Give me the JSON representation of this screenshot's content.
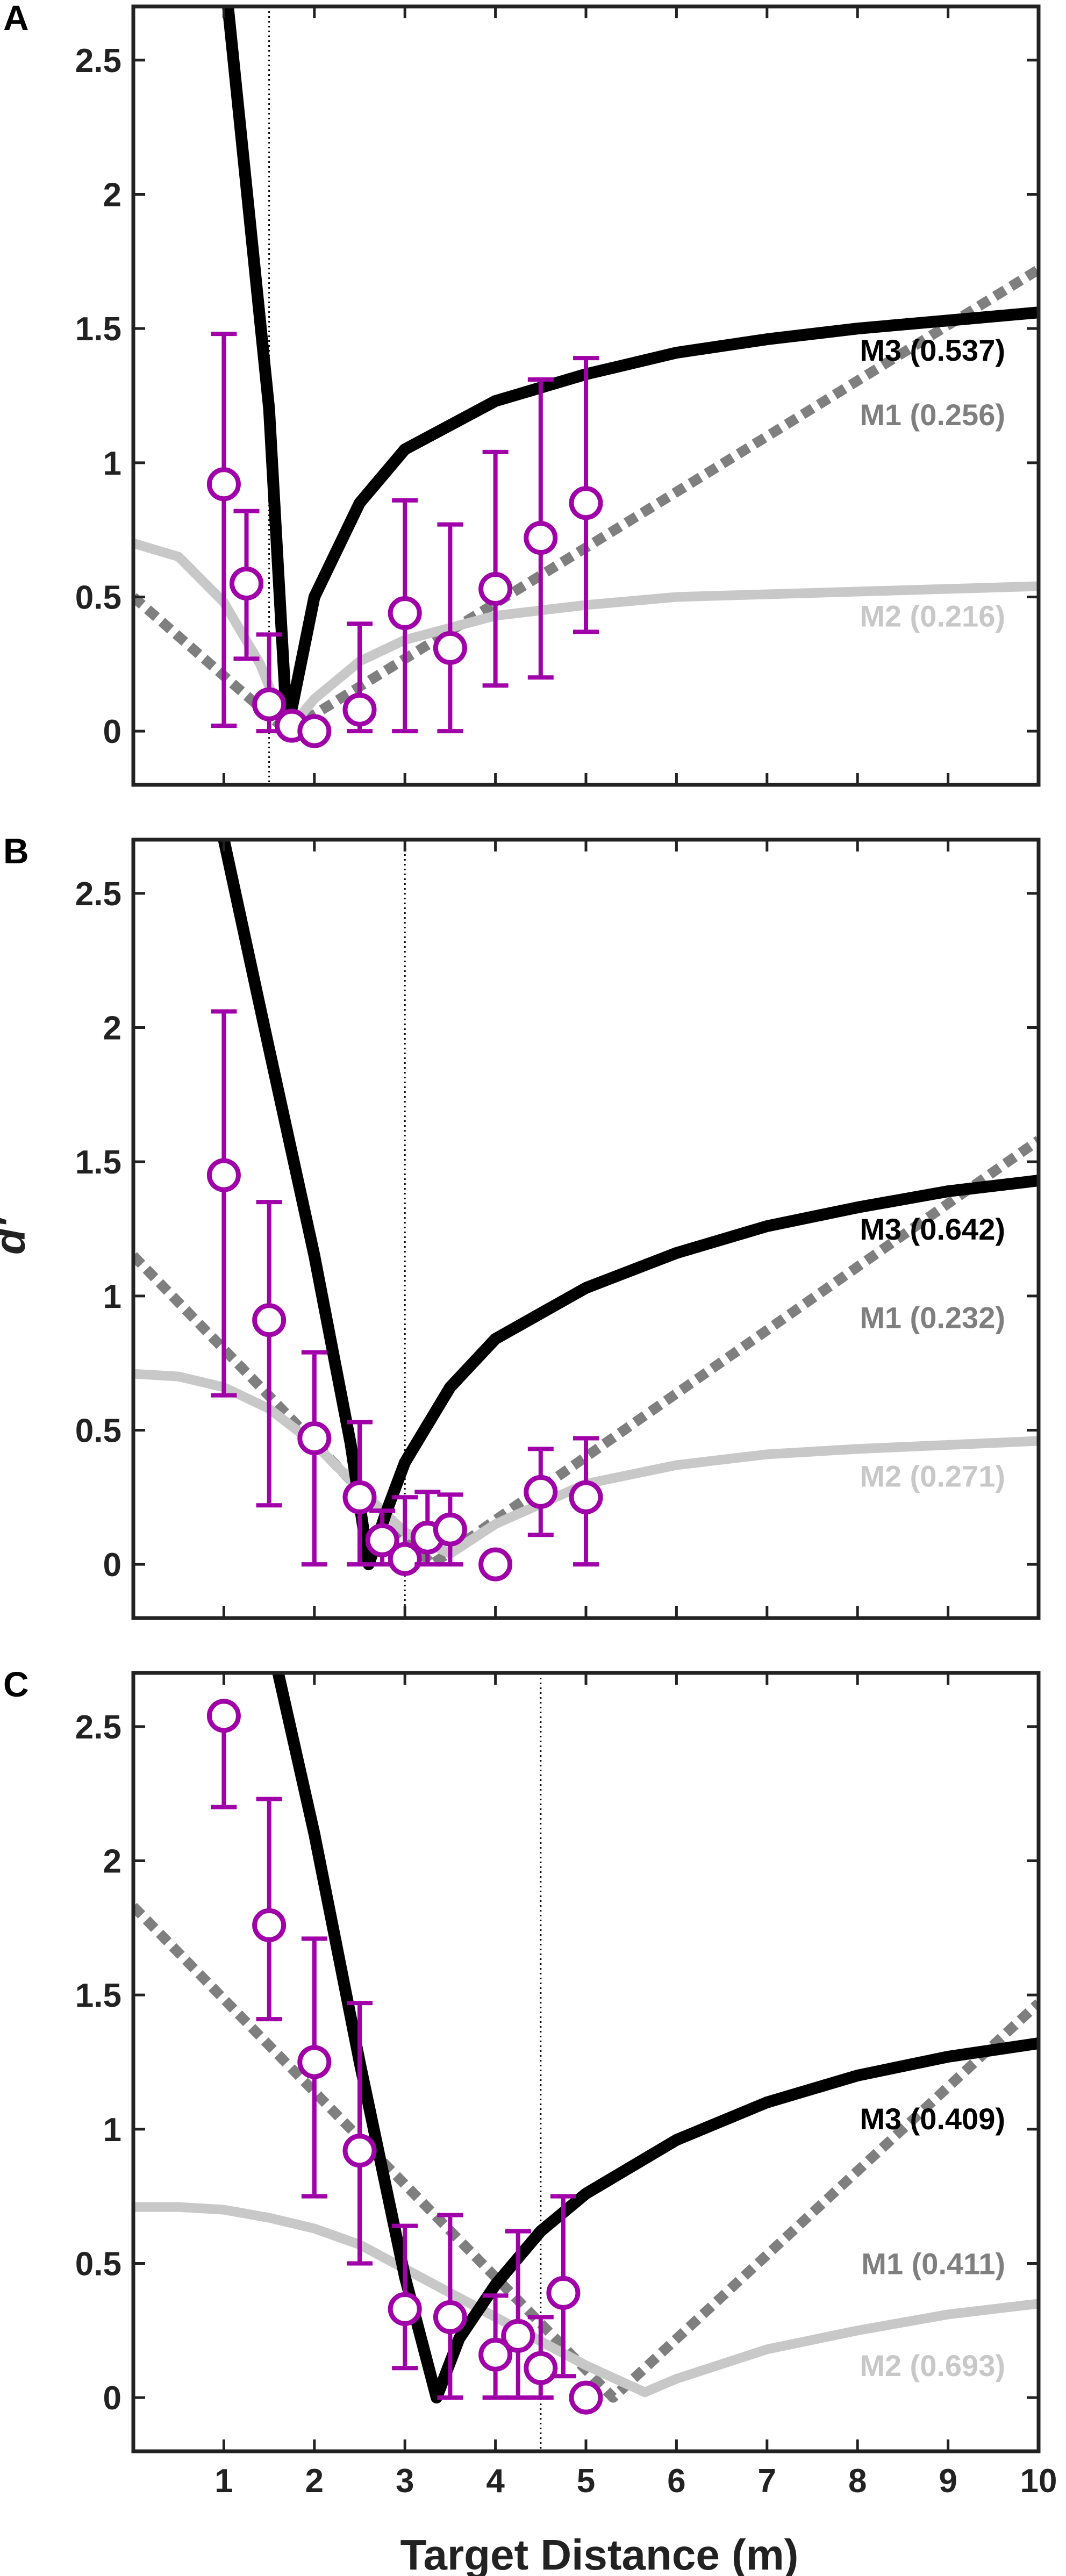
{
  "figure": {
    "xlabel": "Target Distance (m)",
    "ylabel": "d′"
  },
  "colors": {
    "M1": "#7f7f7f",
    "M2": "#c8c8c8",
    "M3": "#000000",
    "data": "#a000a8",
    "axis": "#222222"
  },
  "chart_data": [
    {
      "panel": "A",
      "type": "line",
      "xlim": [
        0,
        10
      ],
      "ylim": [
        -0.2,
        2.7
      ],
      "xticks": [
        1,
        2,
        3,
        4,
        5,
        6,
        7,
        8,
        9,
        10
      ],
      "yticks": [
        0,
        0.5,
        1,
        1.5,
        2,
        2.5
      ],
      "ytick_labels": [
        "0",
        "0.5",
        "1",
        "1.5",
        "2",
        "2.5"
      ],
      "reference_x": 1.5,
      "series": [
        {
          "name": "M3",
          "label": "M3 (0.537)",
          "style": "solid",
          "x": [
            1.0,
            1.5,
            1.7,
            2.0,
            2.5,
            3.0,
            4.0,
            5.0,
            6.0,
            7.0,
            8.0,
            9.0,
            10.0
          ],
          "y": [
            2.85,
            1.2,
            0.0,
            0.5,
            0.85,
            1.05,
            1.23,
            1.33,
            1.41,
            1.46,
            1.5,
            1.53,
            1.56
          ]
        },
        {
          "name": "M1",
          "label": "M1 (0.256)",
          "style": "dashed",
          "x": [
            0.0,
            1.7,
            10.0
          ],
          "y": [
            0.5,
            0.0,
            1.72
          ]
        },
        {
          "name": "M2",
          "label": "M2 (0.216)",
          "style": "solid",
          "x": [
            0.0,
            0.5,
            1.0,
            1.4,
            1.7,
            2.0,
            2.5,
            3.0,
            4.0,
            5.0,
            6.0,
            7.0,
            8.0,
            10.0
          ],
          "y": [
            0.7,
            0.65,
            0.48,
            0.25,
            0.0,
            0.12,
            0.26,
            0.34,
            0.43,
            0.47,
            0.5,
            0.51,
            0.52,
            0.54
          ]
        },
        {
          "name": "data",
          "style": "points",
          "x": [
            1.0,
            1.25,
            1.5,
            1.75,
            2.0,
            2.5,
            3.0,
            3.5,
            4.0,
            4.5,
            5.0
          ],
          "y": [
            0.92,
            0.55,
            0.1,
            0.02,
            0.0,
            0.08,
            0.44,
            0.31,
            0.53,
            0.72,
            0.85
          ],
          "err_low": [
            0.02,
            0.27,
            0.0,
            0.0,
            0.0,
            0.0,
            0.0,
            0.0,
            0.17,
            0.2,
            0.37
          ],
          "err_high": [
            1.48,
            0.82,
            0.36,
            0.0,
            0.0,
            0.4,
            0.86,
            0.77,
            1.04,
            1.31,
            1.39
          ]
        }
      ]
    },
    {
      "panel": "B",
      "type": "line",
      "xlim": [
        0,
        10
      ],
      "ylim": [
        -0.2,
        2.7
      ],
      "xticks": [
        1,
        2,
        3,
        4,
        5,
        6,
        7,
        8,
        9,
        10
      ],
      "yticks": [
        0,
        0.5,
        1,
        1.5,
        2,
        2.5
      ],
      "ytick_labels": [
        "0",
        "0.5",
        "1",
        "1.5",
        "2",
        "2.5"
      ],
      "reference_x": 3.0,
      "series": [
        {
          "name": "M3",
          "label": "M3 (0.642)",
          "style": "solid",
          "x": [
            1.0,
            1.5,
            2.0,
            2.4,
            2.6,
            2.8,
            3.0,
            3.5,
            4.0,
            5.0,
            6.0,
            7.0,
            8.0,
            9.0,
            10.0
          ],
          "y": [
            2.7,
            1.92,
            1.15,
            0.45,
            0.0,
            0.2,
            0.38,
            0.66,
            0.84,
            1.03,
            1.16,
            1.26,
            1.33,
            1.39,
            1.43
          ]
        },
        {
          "name": "M1",
          "label": "M1 (0.232)",
          "style": "dashed",
          "x": [
            0.0,
            3.3,
            10.0
          ],
          "y": [
            1.15,
            0.0,
            1.58
          ]
        },
        {
          "name": "M2",
          "label": "M2 (0.271)",
          "style": "solid",
          "x": [
            0.0,
            0.5,
            1.0,
            1.5,
            2.0,
            2.5,
            3.0,
            3.5,
            4.0,
            5.0,
            6.0,
            7.0,
            8.0,
            10.0
          ],
          "y": [
            0.71,
            0.7,
            0.66,
            0.58,
            0.45,
            0.28,
            0.12,
            0.04,
            0.15,
            0.3,
            0.37,
            0.41,
            0.43,
            0.46
          ]
        },
        {
          "name": "data",
          "style": "points",
          "x": [
            1.0,
            1.5,
            2.0,
            2.5,
            2.75,
            3.0,
            3.25,
            3.5,
            4.0,
            4.5,
            5.0
          ],
          "y": [
            1.45,
            0.91,
            0.47,
            0.25,
            0.09,
            0.02,
            0.1,
            0.13,
            0.0,
            0.27,
            0.25
          ],
          "err_low": [
            0.63,
            0.22,
            0.0,
            0.0,
            0.0,
            0.0,
            0.0,
            0.0,
            0.0,
            0.11,
            0.0
          ],
          "err_high": [
            2.06,
            1.35,
            0.79,
            0.53,
            0.2,
            0.25,
            0.27,
            0.26,
            0.0,
            0.43,
            0.47
          ]
        }
      ]
    },
    {
      "panel": "C",
      "type": "line",
      "xlim": [
        0,
        10
      ],
      "ylim": [
        -0.2,
        2.7
      ],
      "xticks": [
        1,
        2,
        3,
        4,
        5,
        6,
        7,
        8,
        9,
        10
      ],
      "xtick_labels": [
        "1",
        "2",
        "3",
        "4",
        "5",
        "6",
        "7",
        "8",
        "9",
        "10"
      ],
      "yticks": [
        0,
        0.5,
        1,
        1.5,
        2,
        2.5
      ],
      "ytick_labels": [
        "0",
        "0.5",
        "1",
        "1.5",
        "2",
        "2.5"
      ],
      "reference_x": 4.5,
      "series": [
        {
          "name": "M3",
          "label": "M3 (0.409)",
          "style": "solid",
          "x": [
            1.6,
            2.0,
            2.5,
            3.0,
            3.35,
            3.6,
            4.0,
            4.5,
            5.0,
            6.0,
            7.0,
            8.0,
            9.0,
            10.0
          ],
          "y": [
            2.7,
            2.1,
            1.25,
            0.45,
            0.0,
            0.22,
            0.42,
            0.62,
            0.76,
            0.96,
            1.1,
            1.2,
            1.27,
            1.32
          ]
        },
        {
          "name": "M1",
          "label": "M1 (0.411)",
          "style": "dashed",
          "x": [
            0.0,
            5.3,
            10.0
          ],
          "y": [
            1.83,
            0.0,
            1.47
          ]
        },
        {
          "name": "M2",
          "label": "M2 (0.693)",
          "style": "solid",
          "x": [
            0.0,
            0.5,
            1.0,
            1.5,
            2.0,
            2.5,
            3.0,
            3.5,
            4.0,
            4.5,
            5.0,
            5.65,
            6.0,
            7.0,
            8.0,
            9.0,
            10.0
          ],
          "y": [
            0.71,
            0.71,
            0.7,
            0.67,
            0.63,
            0.57,
            0.48,
            0.39,
            0.3,
            0.21,
            0.12,
            0.02,
            0.07,
            0.18,
            0.25,
            0.31,
            0.35
          ]
        },
        {
          "name": "data",
          "style": "points",
          "x": [
            1.0,
            1.5,
            2.0,
            2.5,
            3.0,
            3.5,
            4.0,
            4.25,
            4.5,
            4.75,
            5.0
          ],
          "y": [
            2.54,
            1.76,
            1.25,
            0.92,
            0.33,
            0.3,
            0.16,
            0.23,
            0.11,
            0.39,
            0.0
          ],
          "err_low": [
            2.2,
            1.41,
            0.75,
            0.5,
            0.11,
            0.0,
            0.0,
            0.0,
            0.0,
            0.08,
            0.0
          ],
          "err_high": [
            2.54,
            2.23,
            1.71,
            1.47,
            0.64,
            0.68,
            0.38,
            0.62,
            0.3,
            0.75,
            0.0
          ]
        }
      ]
    }
  ]
}
